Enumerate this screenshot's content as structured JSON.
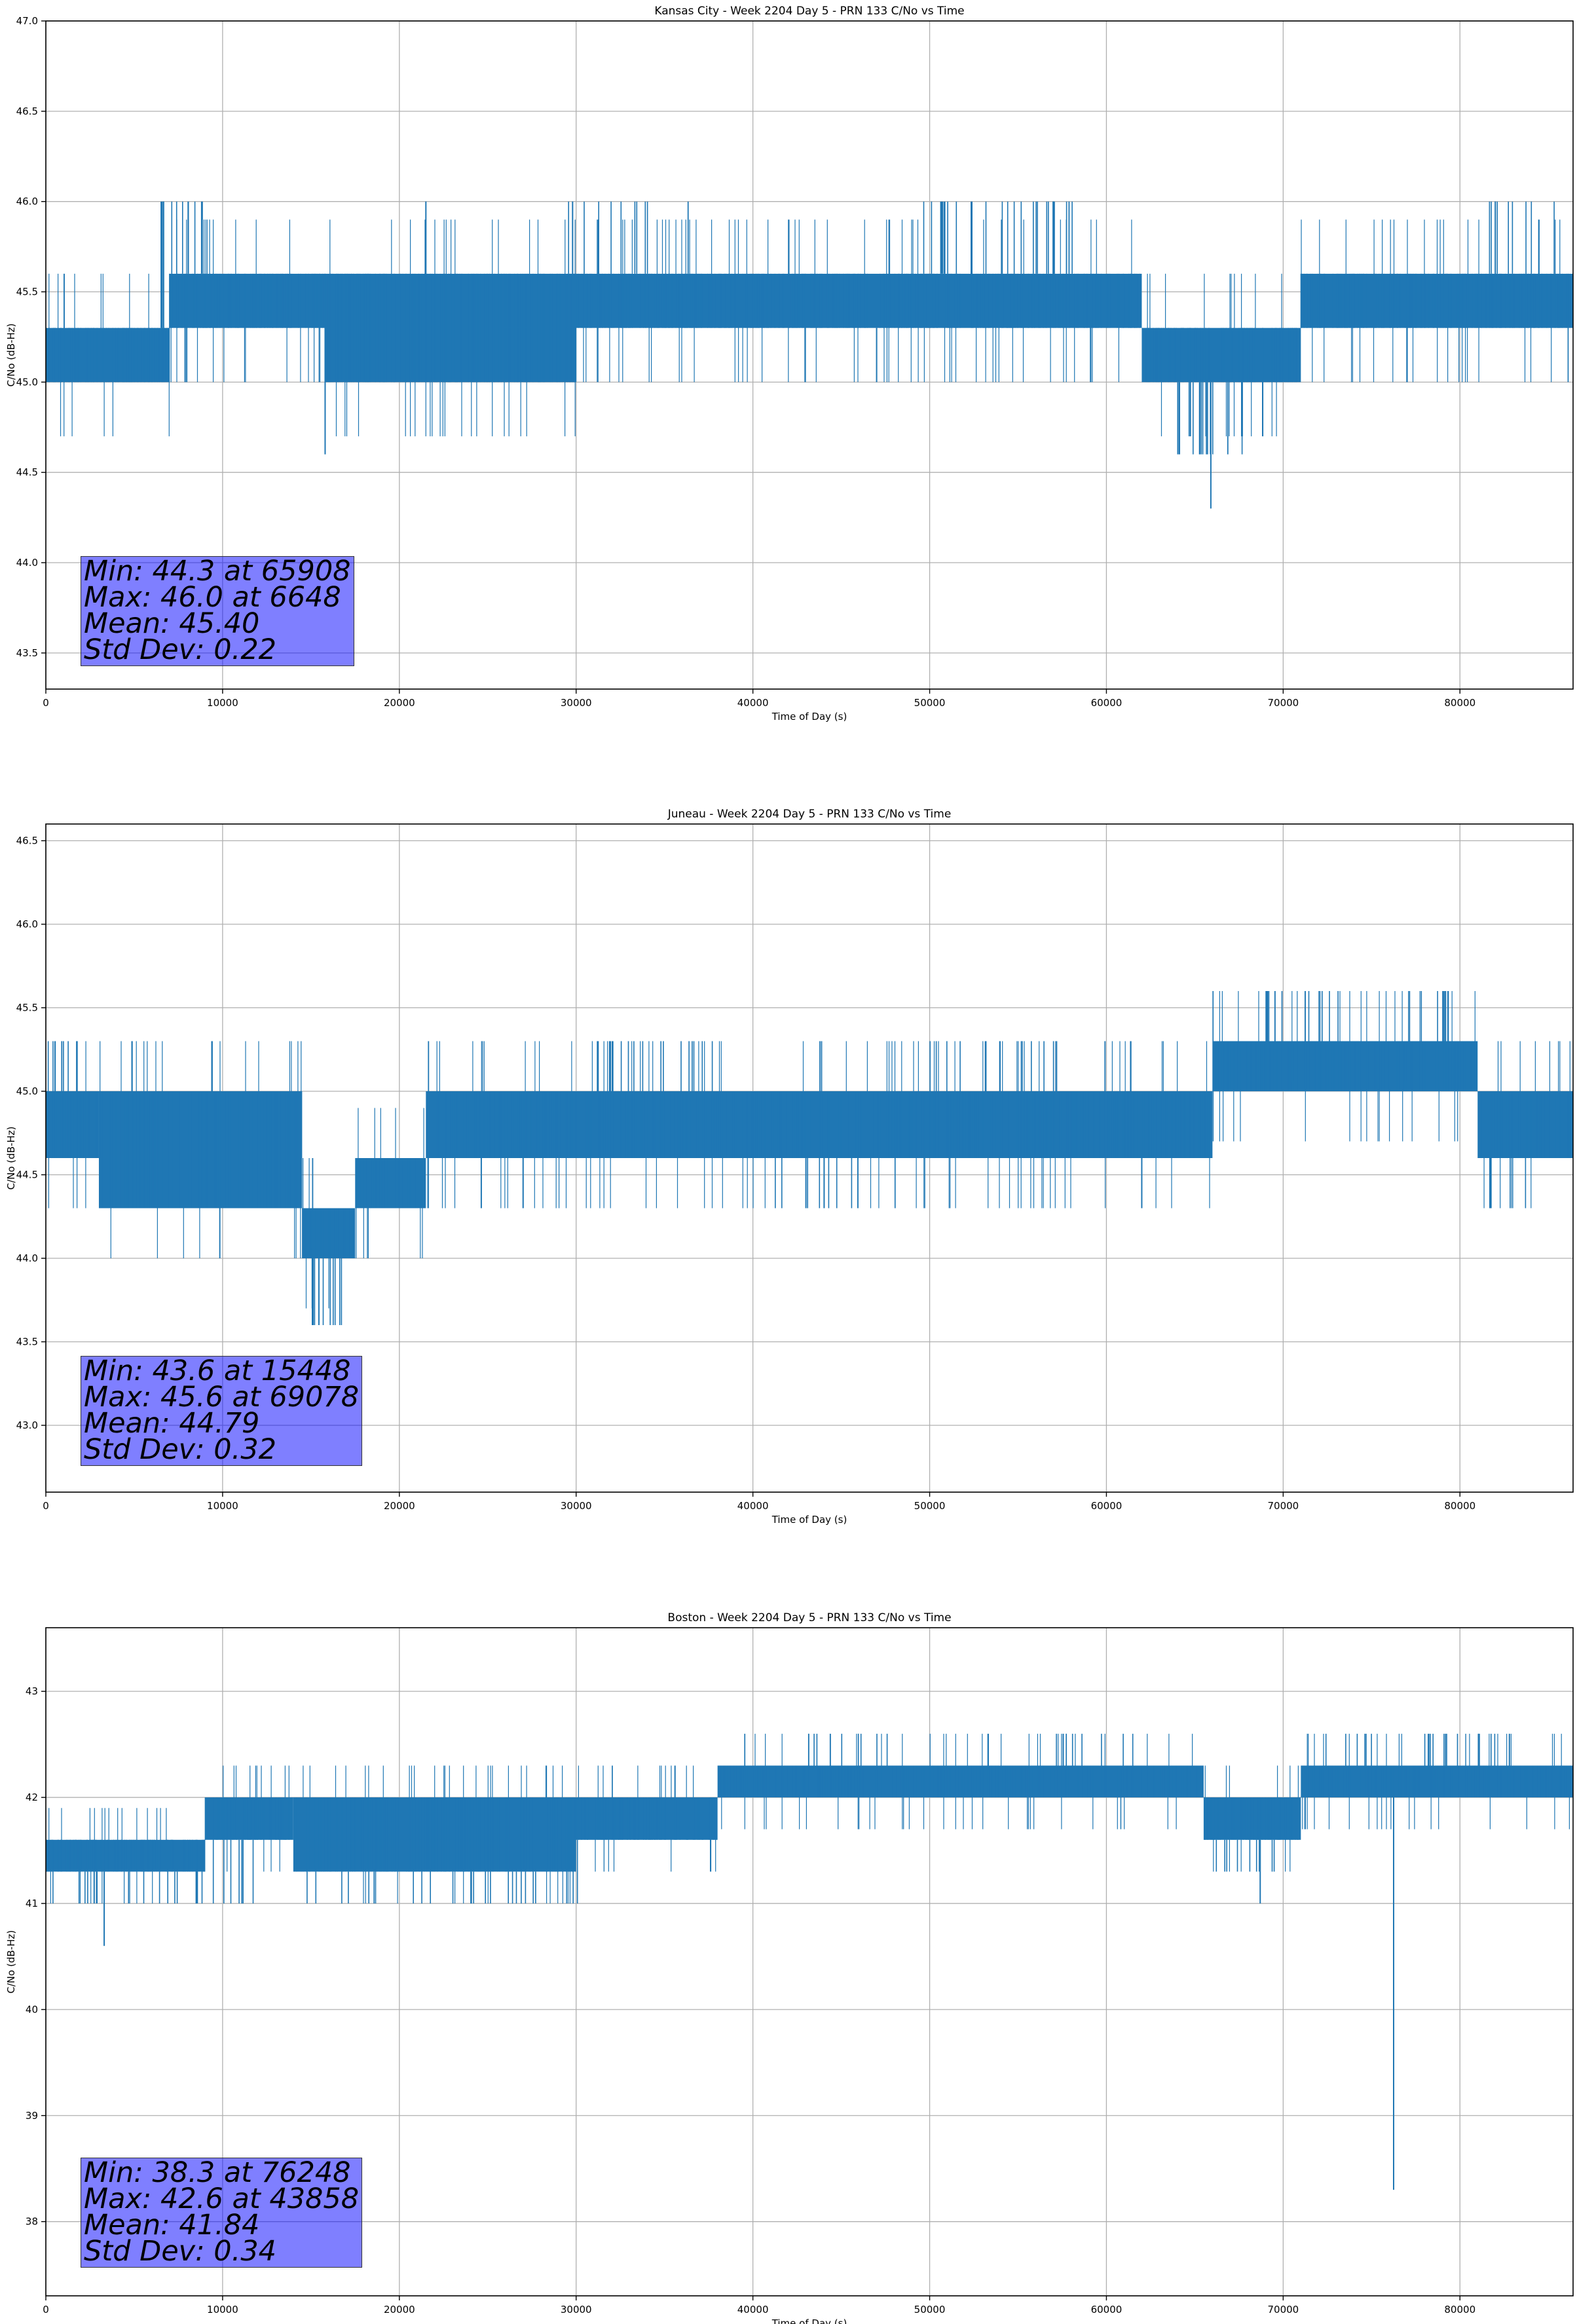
{
  "chart_data": [
    {
      "type": "line",
      "title": "Kansas City - Week 2204 Day 5 - PRN 133 C/No vs Time",
      "xlabel": "Time of Day (s)",
      "ylabel": "C/No (dB-Hz)",
      "xlim": [
        0,
        86400
      ],
      "ylim": [
        43.3,
        47.0
      ],
      "xticks": [
        0,
        10000,
        20000,
        30000,
        40000,
        50000,
        60000,
        70000,
        80000
      ],
      "yticks": [
        43.5,
        44.0,
        44.5,
        45.0,
        45.5,
        46.0,
        46.5,
        47.0
      ],
      "ytick_labels": [
        "43.5",
        "44.0",
        "44.5",
        "45.0",
        "45.5",
        "46.0",
        "46.5",
        "47.0"
      ],
      "grid": true,
      "line_color": "#1f77b4",
      "series": [
        {
          "baseline": [
            [
              0,
              45.1
            ],
            [
              7000,
              45.4
            ],
            [
              16000,
              45.2
            ],
            [
              30000,
              45.4
            ],
            [
              62000,
              45.45
            ],
            [
              62500,
              45.1
            ],
            [
              71000,
              45.15
            ],
            [
              71500,
              45.45
            ],
            [
              86400,
              45.45
            ]
          ],
          "bands": [
            [
              0,
              7000,
              45.0,
              45.3
            ],
            [
              7000,
              15800,
              45.3,
              45.6
            ],
            [
              15800,
              30000,
              45.0,
              45.6
            ],
            [
              30000,
              62000,
              45.3,
              45.6
            ],
            [
              62000,
              71000,
              45.0,
              45.3
            ],
            [
              71000,
              86400,
              45.3,
              45.6
            ]
          ],
          "spikes": [
            [
              6648,
              46.0
            ],
            [
              15800,
              44.6
            ],
            [
              21500,
              46.0
            ],
            [
              65908,
              44.3
            ],
            [
              29800,
              46.0
            ],
            [
              47000,
              45.0
            ],
            [
              57000,
              46.0
            ],
            [
              77000,
              45.0
            ],
            [
              82000,
              46.0
            ]
          ],
          "excursions": [
            [
              6500,
              9000,
              46.0,
              0.5
            ],
            [
              29500,
              37000,
              46.0,
              0.15
            ],
            [
              49500,
              58500,
              46.0,
              0.3
            ],
            [
              63500,
              68500,
              44.6,
              0.3
            ],
            [
              80500,
              86400,
              46.0,
              0.15
            ]
          ]
        }
      ],
      "stats": [
        "Min: 44.3 at 65908",
        "Max: 46.0 at 6648",
        "Mean: 45.40",
        "Std Dev: 0.22"
      ]
    },
    {
      "type": "line",
      "title": "Juneau - Week 2204 Day 5 - PRN 133 C/No vs Time",
      "xlabel": "Time of Day (s)",
      "ylabel": "C/No (dB-Hz)",
      "xlim": [
        0,
        86400
      ],
      "ylim": [
        42.6,
        46.6
      ],
      "xticks": [
        0,
        10000,
        20000,
        30000,
        40000,
        50000,
        60000,
        70000,
        80000
      ],
      "yticks": [
        43.0,
        43.5,
        44.0,
        44.5,
        45.0,
        45.5,
        46.0,
        46.5
      ],
      "ytick_labels": [
        "43.0",
        "43.5",
        "44.0",
        "44.5",
        "45.0",
        "45.5",
        "46.0",
        "46.5"
      ],
      "grid": true,
      "line_color": "#1f77b4",
      "series": [
        {
          "baseline": [
            [
              0,
              44.8
            ],
            [
              3000,
              44.6
            ],
            [
              14500,
              44.3
            ],
            [
              17500,
              44.4
            ],
            [
              21000,
              44.6
            ],
            [
              66000,
              44.8
            ],
            [
              68500,
              45.1
            ],
            [
              81000,
              45.05
            ],
            [
              81500,
              44.8
            ],
            [
              86400,
              44.8
            ]
          ],
          "bands": [
            [
              0,
              3000,
              44.6,
              45.0
            ],
            [
              3000,
              14500,
              44.3,
              45.0
            ],
            [
              14500,
              17500,
              44.0,
              44.3
            ],
            [
              17500,
              21500,
              44.3,
              44.6
            ],
            [
              21500,
              66000,
              44.6,
              45.0
            ],
            [
              66000,
              81000,
              45.0,
              45.3
            ],
            [
              81000,
              86400,
              44.6,
              45.0
            ]
          ],
          "spikes": [
            [
              15448,
              43.6
            ],
            [
              69078,
              45.6
            ],
            [
              62000,
              44.3
            ],
            [
              43000,
              44.3
            ],
            [
              27000,
              44.3
            ]
          ],
          "excursions": [
            [
              0,
              3000,
              45.3,
              0.3
            ],
            [
              14800,
              17400,
              43.6,
              0.35
            ],
            [
              31000,
              38000,
              45.3,
              0.25
            ],
            [
              40000,
              46000,
              44.3,
              0.15
            ],
            [
              50000,
              58000,
              45.3,
              0.15
            ],
            [
              69000,
              80500,
              45.6,
              0.15
            ],
            [
              81500,
              84000,
              44.3,
              0.2
            ]
          ]
        }
      ],
      "stats": [
        "Min: 43.6 at 15448",
        "Max: 45.6 at 69078",
        "Mean: 44.79",
        "Std Dev: 0.32"
      ]
    },
    {
      "type": "line",
      "title": "Boston - Week 2204 Day 5 - PRN 133 C/No vs Time",
      "xlabel": "Time of Day (s)",
      "ylabel": "C/No (dB-Hz)",
      "xlim": [
        0,
        86400
      ],
      "ylim": [
        37.3,
        43.6
      ],
      "xticks": [
        0,
        10000,
        20000,
        30000,
        40000,
        50000,
        60000,
        70000,
        80000
      ],
      "yticks": [
        38,
        39,
        40,
        41,
        42,
        43
      ],
      "ytick_labels": [
        "38",
        "39",
        "40",
        "41",
        "42",
        "43"
      ],
      "grid": true,
      "line_color": "#1f77b4",
      "series": [
        {
          "baseline": [
            [
              0,
              41.3
            ],
            [
              9000,
              41.6
            ],
            [
              14000,
              41.5
            ],
            [
              31000,
              41.7
            ],
            [
              38000,
              41.8
            ],
            [
              38500,
              42.1
            ],
            [
              60000,
              42.15
            ],
            [
              65500,
              41.8
            ],
            [
              71000,
              41.8
            ],
            [
              71500,
              42.1
            ],
            [
              86400,
              42.1
            ]
          ],
          "bands": [
            [
              0,
              9000,
              41.3,
              41.6
            ],
            [
              9000,
              14000,
              41.6,
              42.0
            ],
            [
              14000,
              30000,
              41.3,
              42.0
            ],
            [
              30000,
              38000,
              41.6,
              42.0
            ],
            [
              38000,
              65500,
              42.0,
              42.3
            ],
            [
              65500,
              71000,
              41.6,
              42.0
            ],
            [
              71000,
              86400,
              42.0,
              42.3
            ]
          ],
          "spikes": [
            [
              3300,
              40.6
            ],
            [
              76248,
              38.3
            ],
            [
              68700,
              41.0
            ]
          ],
          "excursions": [
            [
              0,
              12000,
              41.0,
              0.2
            ],
            [
              14000,
              31000,
              41.0,
              0.15
            ],
            [
              43000,
              48000,
              42.6,
              0.2
            ],
            [
              57000,
              62000,
              42.6,
              0.15
            ],
            [
              72000,
              75000,
              42.6,
              0.2
            ],
            [
              78000,
              83000,
              42.6,
              0.3
            ],
            [
              66000,
              70000,
              41.3,
              0.2
            ]
          ]
        }
      ],
      "stats": [
        "Min: 38.3 at 76248",
        "Max: 42.6 at 43858",
        "Mean: 41.84",
        "Std Dev: 0.34"
      ]
    }
  ]
}
